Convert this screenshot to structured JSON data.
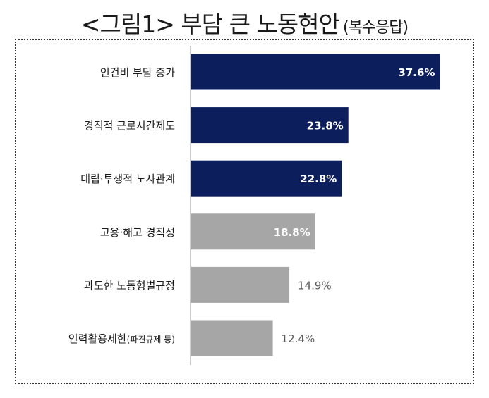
{
  "title": "<그림1> 부담 큰 노동현안",
  "subtitle": "(복수응답)",
  "colors": {
    "highlight": "#0c1e5c",
    "normal": "#a6a6a6",
    "axis": "#999999",
    "label_inside": "#ffffff",
    "label_outside": "#595959",
    "category_text": "#1a1a1a"
  },
  "chart_data": {
    "type": "bar",
    "orientation": "horizontal",
    "categories": [
      "인건비 부담 증가",
      "경직적 근로시간제도",
      "대립·투쟁적 노사관계",
      "고용·해고 경직성",
      "과도한 노동형벌규정",
      "인력활용제한(파견규제 등)"
    ],
    "category_parts": [
      [
        "인건비 부담 증가",
        ""
      ],
      [
        "경직적 근로시간제도",
        ""
      ],
      [
        "대립·투쟁적 노사관계",
        ""
      ],
      [
        "고용·해고 경직성",
        ""
      ],
      [
        "과도한 노동형벌규정",
        ""
      ],
      [
        "인력활용제한",
        "(파견규제 등)"
      ]
    ],
    "values": [
      37.6,
      23.8,
      22.8,
      18.8,
      14.9,
      12.4
    ],
    "value_labels": [
      "37.6%",
      "23.8%",
      "22.8%",
      "18.8%",
      "14.9%",
      "12.4%"
    ],
    "highlighted": [
      true,
      true,
      true,
      false,
      false,
      false
    ],
    "label_inside": [
      true,
      true,
      true,
      true,
      false,
      false
    ],
    "xlim": [
      0,
      40
    ],
    "grid": false,
    "legend": "none"
  }
}
